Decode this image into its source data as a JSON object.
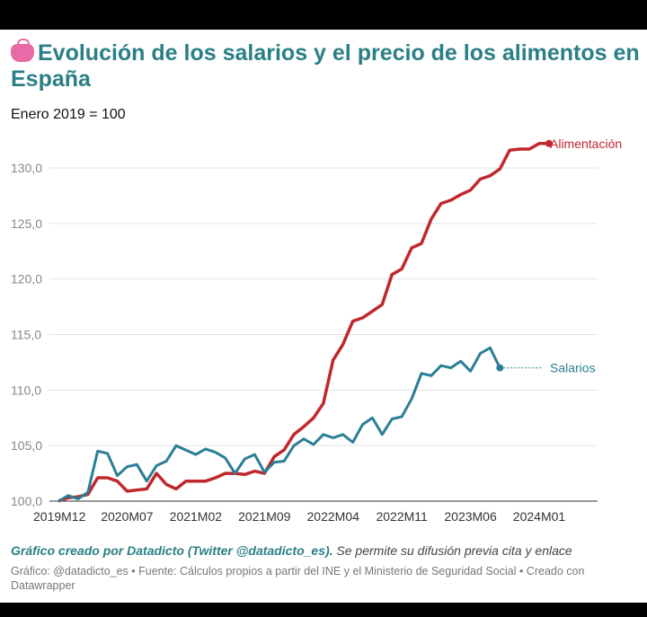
{
  "title": "Evolución de los salarios y el precio de los alimentos en España",
  "subtitle": "Enero 2019 = 100",
  "icon": "purse-icon",
  "colors": {
    "alimentacion": "#c0282d",
    "salarios": "#2a7f96",
    "title": "#2a7f86"
  },
  "chart_data": {
    "type": "line",
    "title": "Evolución de los salarios y el precio de los alimentos en España",
    "subtitle": "Enero 2019 = 100",
    "x_ticks": [
      "2019M12",
      "2020M07",
      "2021M02",
      "2021M09",
      "2022M04",
      "2022M11",
      "2023M06",
      "2024M01"
    ],
    "y_ticks": [
      "100,0",
      "105,0",
      "110,0",
      "115,0",
      "120,0",
      "125,0",
      "130,0"
    ],
    "ylim": [
      100,
      132.5
    ],
    "grid": true,
    "legend": "direct labels at line ends",
    "series": [
      {
        "name": "Alimentación",
        "x": [
          "2019M12",
          "2020M01",
          "2020M02",
          "2020M03",
          "2020M04",
          "2020M05",
          "2020M06",
          "2020M07",
          "2020M08",
          "2020M09",
          "2020M10",
          "2020M11",
          "2020M12",
          "2021M01",
          "2021M02",
          "2021M03",
          "2021M04",
          "2021M05",
          "2021M06",
          "2021M07",
          "2021M08",
          "2021M09",
          "2021M10",
          "2021M11",
          "2021M12",
          "2022M01",
          "2022M02",
          "2022M03",
          "2022M04",
          "2022M05",
          "2022M06",
          "2022M07",
          "2022M08",
          "2022M09",
          "2022M10",
          "2022M11",
          "2022M12",
          "2023M01",
          "2023M02",
          "2023M03",
          "2023M04",
          "2023M05",
          "2023M06",
          "2023M07",
          "2023M08",
          "2023M09",
          "2023M10",
          "2023M11",
          "2023M12",
          "2024M01",
          "2024M02"
        ],
        "values": [
          100.0,
          100.3,
          100.4,
          100.6,
          102.1,
          102.1,
          101.8,
          100.9,
          101.0,
          101.1,
          102.5,
          101.5,
          101.1,
          101.8,
          101.8,
          101.8,
          102.1,
          102.5,
          102.5,
          102.4,
          102.7,
          102.5,
          104.0,
          104.6,
          106.0,
          106.7,
          107.5,
          108.8,
          112.7,
          114.1,
          116.2,
          116.5,
          117.1,
          117.7,
          120.4,
          120.9,
          122.8,
          123.2,
          125.4,
          126.8,
          127.1,
          127.6,
          128.0,
          129.0,
          129.3,
          129.9,
          131.6,
          131.7,
          131.7,
          132.2,
          132.2
        ]
      },
      {
        "name": "Salarios",
        "x": [
          "2019M12",
          "2020M01",
          "2020M02",
          "2020M03",
          "2020M04",
          "2020M05",
          "2020M06",
          "2020M07",
          "2020M08",
          "2020M09",
          "2020M10",
          "2020M11",
          "2020M12",
          "2021M01",
          "2021M02",
          "2021M03",
          "2021M04",
          "2021M05",
          "2021M06",
          "2021M07",
          "2021M08",
          "2021M09",
          "2021M10",
          "2021M11",
          "2021M12",
          "2022M01",
          "2022M02",
          "2022M03",
          "2022M04",
          "2022M05",
          "2022M06",
          "2022M07",
          "2022M08",
          "2022M09",
          "2022M10",
          "2022M11",
          "2022M12",
          "2023M01",
          "2023M02",
          "2023M03",
          "2023M04",
          "2023M05",
          "2023M06",
          "2023M07",
          "2023M08",
          "2023M09"
        ],
        "values": [
          100.0,
          100.5,
          100.2,
          100.8,
          104.5,
          104.3,
          102.3,
          103.1,
          103.3,
          101.8,
          103.2,
          103.6,
          105.0,
          104.6,
          104.2,
          104.7,
          104.4,
          103.9,
          102.5,
          103.8,
          104.2,
          102.6,
          103.5,
          103.6,
          105.0,
          105.6,
          105.1,
          106.0,
          105.7,
          106.0,
          105.3,
          106.9,
          107.5,
          106.0,
          107.4,
          107.6,
          109.2,
          111.5,
          111.3,
          112.2,
          112.0,
          112.6,
          111.7,
          113.3,
          113.8,
          112.0
        ]
      }
    ],
    "annotations": [
      "Alimentación",
      "Salarios"
    ]
  },
  "footer": {
    "credit": "Gráfico creado por Datadicto (Twitter @datadicto_es).",
    "credit_rest": " Se permite su difusión previa cita y enlace",
    "source": "Gráfico: @datadicto_es • Fuente: Cálculos propios a partir del INE y el Ministerio de Seguridad Social • Creado con Datawrapper"
  }
}
